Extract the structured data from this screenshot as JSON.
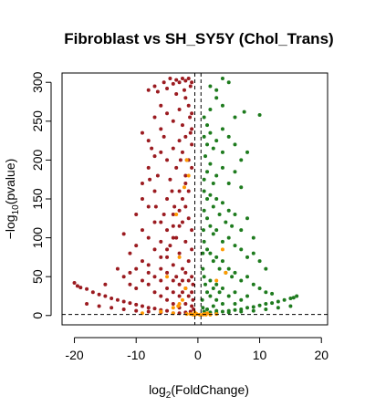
{
  "chart_data": {
    "type": "scatter",
    "title": "Fibroblast vs SH_SY5Y (Chol_Trans)",
    "xlabel_parts": {
      "pre": "log",
      "sub": "2",
      "post": "(FoldChange)"
    },
    "ylabel_parts": {
      "pre": "−log",
      "sub": "10",
      "post": "(pvalue)"
    },
    "xlim": [
      -22,
      21
    ],
    "ylim": [
      -12,
      312
    ],
    "xticks": [
      -20,
      -10,
      0,
      10,
      20
    ],
    "yticks": [
      0,
      50,
      100,
      150,
      200,
      250,
      300
    ],
    "vlines": [
      -0.5,
      0.5
    ],
    "hline": 1.3,
    "grid": false,
    "legend": "none",
    "colors": {
      "down": "#9b1b20",
      "up": "#1e7b1e",
      "highlight": "#ff9900",
      "threshold": "#000000"
    },
    "series": [
      {
        "group": "down",
        "points": [
          [
            -20,
            42
          ],
          [
            -19.5,
            38
          ],
          [
            -19,
            36
          ],
          [
            -18,
            34
          ],
          [
            -17,
            30
          ],
          [
            -16,
            27
          ],
          [
            -15,
            25
          ],
          [
            -14,
            22
          ],
          [
            -13,
            20
          ],
          [
            -12,
            18
          ],
          [
            -11,
            16
          ],
          [
            -10,
            14
          ],
          [
            -9,
            12
          ],
          [
            -8,
            10
          ],
          [
            -7,
            9
          ],
          [
            -6,
            7
          ],
          [
            -5,
            6
          ],
          [
            -18,
            15
          ],
          [
            -16,
            12
          ],
          [
            -14,
            10
          ],
          [
            -12,
            8
          ],
          [
            -10,
            6
          ],
          [
            -8,
            5
          ],
          [
            -6,
            4
          ],
          [
            -4,
            3
          ],
          [
            -8,
            290
          ],
          [
            -7,
            295
          ],
          [
            -6.5,
            288
          ],
          [
            -5.5,
            300
          ],
          [
            -5,
            292
          ],
          [
            -4.5,
            305
          ],
          [
            -4,
            298
          ],
          [
            -3.5,
            303
          ],
          [
            -3,
            300
          ],
          [
            -2.5,
            305
          ],
          [
            -2,
            302
          ],
          [
            -1.5,
            305
          ],
          [
            -1,
            300
          ],
          [
            -1.2,
            295
          ],
          [
            -2.2,
            290
          ],
          [
            -9,
            235
          ],
          [
            -8,
            225
          ],
          [
            -7,
            255
          ],
          [
            -7.5,
            215
          ],
          [
            -6,
            270
          ],
          [
            -6,
            240
          ],
          [
            -5,
            260
          ],
          [
            -5.5,
            230
          ],
          [
            -4,
            250
          ],
          [
            -3.5,
            285
          ],
          [
            -3,
            265
          ],
          [
            -2.5,
            245
          ],
          [
            -2,
            280
          ],
          [
            -1.5,
            270
          ],
          [
            -1,
            260
          ],
          [
            -1,
            240
          ],
          [
            -10,
            130
          ],
          [
            -9,
            170
          ],
          [
            -9,
            150
          ],
          [
            -8,
            190
          ],
          [
            -8,
            140
          ],
          [
            -7,
            205
          ],
          [
            -7,
            160
          ],
          [
            -6.5,
            180
          ],
          [
            -6,
            210
          ],
          [
            -6,
            120
          ],
          [
            -5,
            200
          ],
          [
            -5,
            150
          ],
          [
            -4.5,
            175
          ],
          [
            -4,
            215
          ],
          [
            -4,
            130
          ],
          [
            -3.5,
            190
          ],
          [
            -3,
            225
          ],
          [
            -3,
            160
          ],
          [
            -2.5,
            210
          ],
          [
            -2,
            230
          ],
          [
            -2,
            180
          ],
          [
            -1.5,
            200
          ],
          [
            -1,
            220
          ],
          [
            -1,
            190
          ],
          [
            -1.5,
            160
          ],
          [
            -12,
            105
          ],
          [
            -11,
            80
          ],
          [
            -10,
            90
          ],
          [
            -10,
            60
          ],
          [
            -9,
            110
          ],
          [
            -9,
            70
          ],
          [
            -8,
            100
          ],
          [
            -8,
            55
          ],
          [
            -7,
            120
          ],
          [
            -7,
            85
          ],
          [
            -6,
            95
          ],
          [
            -6,
            60
          ],
          [
            -5.5,
            130
          ],
          [
            -5,
            110
          ],
          [
            -5,
            75
          ],
          [
            -4.5,
            90
          ],
          [
            -4,
            115
          ],
          [
            -4,
            65
          ],
          [
            -3.5,
            100
          ],
          [
            -3,
            135
          ],
          [
            -3,
            80
          ],
          [
            -2.5,
            120
          ],
          [
            -2,
            140
          ],
          [
            -2,
            95
          ],
          [
            -1.5,
            125
          ],
          [
            -1,
            110
          ],
          [
            -1,
            85
          ],
          [
            -1.5,
            70
          ],
          [
            -2.5,
            60
          ],
          [
            -13,
            60
          ],
          [
            -12,
            50
          ],
          [
            -11,
            40
          ],
          [
            -10,
            35
          ],
          [
            -9,
            45
          ],
          [
            -8,
            40
          ],
          [
            -7,
            50
          ],
          [
            -7,
            30
          ],
          [
            -6,
            45
          ],
          [
            -6,
            25
          ],
          [
            -5,
            55
          ],
          [
            -5,
            35
          ],
          [
            -5,
            20
          ],
          [
            -4,
            45
          ],
          [
            -4,
            30
          ],
          [
            -4,
            15
          ],
          [
            -3.5,
            50
          ],
          [
            -3,
            40
          ],
          [
            -3,
            25
          ],
          [
            -3,
            10
          ],
          [
            -2.5,
            45
          ],
          [
            -2.5,
            30
          ],
          [
            -2,
            55
          ],
          [
            -2,
            35
          ],
          [
            -2,
            15
          ],
          [
            -1.5,
            45
          ],
          [
            -1.5,
            25
          ],
          [
            -1,
            50
          ],
          [
            -1,
            30
          ],
          [
            -1,
            12
          ],
          [
            -0.8,
            40
          ],
          [
            -0.8,
            20
          ],
          [
            -0.7,
            8
          ],
          [
            -1.2,
            5
          ],
          [
            -2,
            4
          ],
          [
            -3,
            3
          ],
          [
            -15,
            40
          ],
          [
            -11,
            55
          ],
          [
            -8,
            65
          ],
          [
            -6,
            75
          ],
          [
            -5,
            85
          ],
          [
            -4,
            100
          ],
          [
            -3,
            115
          ],
          [
            -2.5,
            150
          ],
          [
            -2,
            170
          ],
          [
            -1.8,
            200
          ],
          [
            -1.2,
            235
          ],
          [
            -1.3,
            255
          ],
          [
            -2.8,
            200
          ],
          [
            -4.2,
            160
          ],
          [
            -3.8,
            140
          ],
          [
            -6.8,
            140
          ],
          [
            -7.8,
            175
          ]
        ]
      },
      {
        "group": "up",
        "points": [
          [
            16,
            25
          ],
          [
            15.5,
            23
          ],
          [
            15,
            22
          ],
          [
            14,
            20
          ],
          [
            13,
            18
          ],
          [
            12,
            16
          ],
          [
            11,
            15
          ],
          [
            10,
            13
          ],
          [
            9,
            11
          ],
          [
            8,
            10
          ],
          [
            7,
            8
          ],
          [
            6,
            7
          ],
          [
            5,
            6
          ],
          [
            4,
            5
          ],
          [
            3,
            4
          ],
          [
            15,
            12
          ],
          [
            13,
            10
          ],
          [
            11,
            8
          ],
          [
            9,
            6
          ],
          [
            7,
            5
          ],
          [
            5,
            4
          ],
          [
            3,
            3
          ],
          [
            2,
            295
          ],
          [
            3,
            290
          ],
          [
            4,
            305
          ],
          [
            5,
            300
          ],
          [
            3,
            280
          ],
          [
            4,
            270
          ],
          [
            10,
            258
          ],
          [
            6,
            255
          ],
          [
            7.5,
            262
          ],
          [
            1,
            230
          ],
          [
            1.5,
            220
          ],
          [
            2,
            235
          ],
          [
            2.5,
            215
          ],
          [
            3,
            225
          ],
          [
            4,
            240
          ],
          [
            4,
            210
          ],
          [
            5,
            230
          ],
          [
            6,
            220
          ],
          [
            7,
            200
          ],
          [
            8,
            210
          ],
          [
            2,
            195
          ],
          [
            3,
            180
          ],
          [
            1.5,
            185
          ],
          [
            1,
            175
          ],
          [
            2.5,
            170
          ],
          [
            4,
            190
          ],
          [
            5,
            170
          ],
          [
            6,
            185
          ],
          [
            7,
            165
          ],
          [
            1,
            160
          ],
          [
            1.5,
            150
          ],
          [
            2,
            155
          ],
          [
            2.5,
            140
          ],
          [
            3,
            150
          ],
          [
            3.5,
            130
          ],
          [
            4,
            145
          ],
          [
            4.5,
            120
          ],
          [
            5,
            135
          ],
          [
            5.5,
            115
          ],
          [
            6,
            130
          ],
          [
            7,
            110
          ],
          [
            8,
            125
          ],
          [
            9,
            100
          ],
          [
            9,
            80
          ],
          [
            10,
            70
          ],
          [
            11,
            60
          ],
          [
            1,
            135
          ],
          [
            1.5,
            125
          ],
          [
            2,
            115
          ],
          [
            2.5,
            105
          ],
          [
            3,
            110
          ],
          [
            4,
            95
          ],
          [
            5,
            100
          ],
          [
            6,
            90
          ],
          [
            7,
            85
          ],
          [
            8,
            75
          ],
          [
            1,
            95
          ],
          [
            1.5,
            85
          ],
          [
            2,
            80
          ],
          [
            2.5,
            70
          ],
          [
            3,
            75
          ],
          [
            3.5,
            60
          ],
          [
            4,
            70
          ],
          [
            4.5,
            55
          ],
          [
            5,
            60
          ],
          [
            5.5,
            50
          ],
          [
            6,
            55
          ],
          [
            7,
            45
          ],
          [
            8,
            50
          ],
          [
            9,
            40
          ],
          [
            10,
            35
          ],
          [
            11,
            30
          ],
          [
            12,
            28
          ],
          [
            0.8,
            60
          ],
          [
            1,
            50
          ],
          [
            1.2,
            40
          ],
          [
            1.5,
            30
          ],
          [
            2,
            45
          ],
          [
            2,
            25
          ],
          [
            2.5,
            35
          ],
          [
            3,
            40
          ],
          [
            3,
            20
          ],
          [
            3.5,
            30
          ],
          [
            4,
            35
          ],
          [
            4,
            15
          ],
          [
            5,
            25
          ],
          [
            6,
            30
          ],
          [
            6,
            15
          ],
          [
            7,
            20
          ],
          [
            8,
            25
          ],
          [
            0.7,
            20
          ],
          [
            0.8,
            10
          ],
          [
            1,
            5
          ],
          [
            1.5,
            8
          ],
          [
            2,
            4
          ],
          [
            2.5,
            12
          ],
          [
            3,
            6
          ],
          [
            1,
            255
          ],
          [
            1.5,
            245
          ],
          [
            2,
            265
          ],
          [
            1.2,
            205
          ],
          [
            0.9,
            110
          ],
          [
            0.8,
            80
          ]
        ]
      },
      {
        "group": "highlight",
        "points": [
          [
            -3,
            15
          ],
          [
            -3.2,
            12
          ],
          [
            -2.5,
            20
          ],
          [
            -4,
            10
          ],
          [
            -6,
            5
          ],
          [
            -9,
            3
          ],
          [
            -3,
            75
          ],
          [
            -3.5,
            130
          ],
          [
            -2.2,
            165
          ],
          [
            -1.8,
            200
          ],
          [
            -1.5,
            180
          ],
          [
            -1.8,
            2
          ],
          [
            -1.2,
            2
          ],
          [
            -0.8,
            1
          ],
          [
            -0.5,
            1
          ],
          [
            0.3,
            1
          ],
          [
            0.8,
            1
          ],
          [
            1.3,
            1
          ],
          [
            2,
            1
          ],
          [
            3,
            2
          ],
          [
            1.5,
            3
          ],
          [
            -4,
            3
          ],
          [
            -5,
            50
          ],
          [
            3,
            45
          ],
          [
            4,
            85
          ],
          [
            4.5,
            55
          ],
          [
            -2,
            35
          ],
          [
            -0.5,
            4
          ],
          [
            -0.2,
            2
          ],
          [
            1,
            2
          ]
        ]
      }
    ]
  }
}
